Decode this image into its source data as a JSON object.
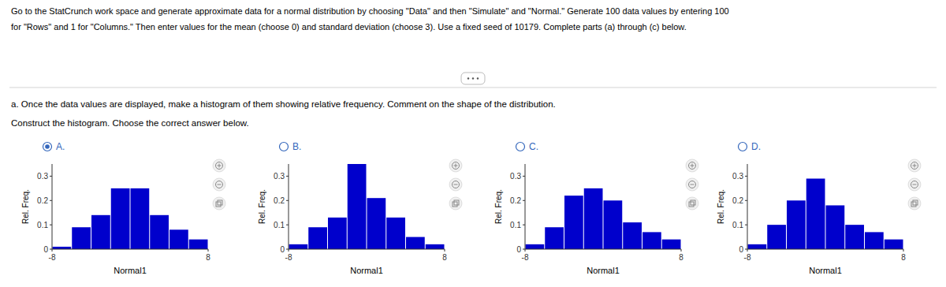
{
  "chart_data": [
    {
      "type": "histogram",
      "title": "A.",
      "annotations": [
        "Go to the StatCrunch work space and generate approximate data for a normal distribution by choosing \"Data\" and then \"Simulate\" and \"Normal.\" Generate 100 data values by entering 100",
        "for \"Rows\" and 1 for \"Columns.\" Then enter values for the mean (choose 0) and standard deviation (choose 3). Use a fixed seed of 10179. Complete parts (a) through (c) below.",
        "a. Once the data values are displayed, make a histogram of them showing relative frequency. Comment on the shape of the distribution.",
        "Construct the histogram. Choose the correct answer below."
      ],
      "bins": [
        -8,
        -6,
        -4,
        -2,
        0,
        2,
        4,
        6,
        8
      ],
      "values": [
        0.01,
        0.09,
        0.14,
        0.25,
        0.25,
        0.14,
        0.08,
        0.04
      ],
      "color": "#0000CC",
      "xlabel": "Normal1",
      "ylabel": "Rel. Freq.",
      "xlim": [
        -8,
        8
      ],
      "ylim": [
        0,
        0.35
      ],
      "xticks": [
        -8,
        8
      ],
      "yticks": [
        0,
        0.1,
        0.2,
        0.3
      ]
    },
    {
      "type": "histogram",
      "title": "B.",
      "bins": [
        -8,
        -6,
        -4,
        -2,
        0,
        2,
        4,
        6,
        8
      ],
      "values": [
        0.02,
        0.09,
        0.13,
        0.35,
        0.21,
        0.13,
        0.05,
        0.02
      ],
      "color": "#0000CC",
      "xlabel": "Normal1",
      "ylabel": "Rel. Freq.",
      "xlim": [
        -8,
        8
      ],
      "ylim": [
        0,
        0.35
      ],
      "xticks": [
        -8,
        8
      ],
      "yticks": [
        0,
        0.1,
        0.2,
        0.3
      ]
    },
    {
      "type": "histogram",
      "title": "C.",
      "bins": [
        -8,
        -6,
        -4,
        -2,
        0,
        2,
        4,
        6,
        8
      ],
      "values": [
        0.02,
        0.09,
        0.22,
        0.25,
        0.2,
        0.11,
        0.07,
        0.04
      ],
      "color": "#0000CC",
      "xlabel": "Normal1",
      "ylabel": "Rel. Freq.",
      "xlim": [
        -8,
        8
      ],
      "ylim": [
        0,
        0.35
      ],
      "xticks": [
        -8,
        8
      ],
      "yticks": [
        0,
        0.1,
        0.2,
        0.3
      ]
    },
    {
      "type": "histogram",
      "title": "D.",
      "bins": [
        -8,
        -6,
        -4,
        -2,
        0,
        2,
        4,
        6,
        8
      ],
      "values": [
        0.02,
        0.1,
        0.2,
        0.29,
        0.18,
        0.1,
        0.07,
        0.04
      ],
      "color": "#0000CC",
      "xlabel": "Normal1",
      "ylabel": "Rel. Freq.",
      "xlim": [
        -8,
        8
      ],
      "ylim": [
        0,
        0.35
      ],
      "xticks": [
        -8,
        8
      ],
      "yticks": [
        0,
        0.1,
        0.2,
        0.3
      ]
    }
  ]
}
